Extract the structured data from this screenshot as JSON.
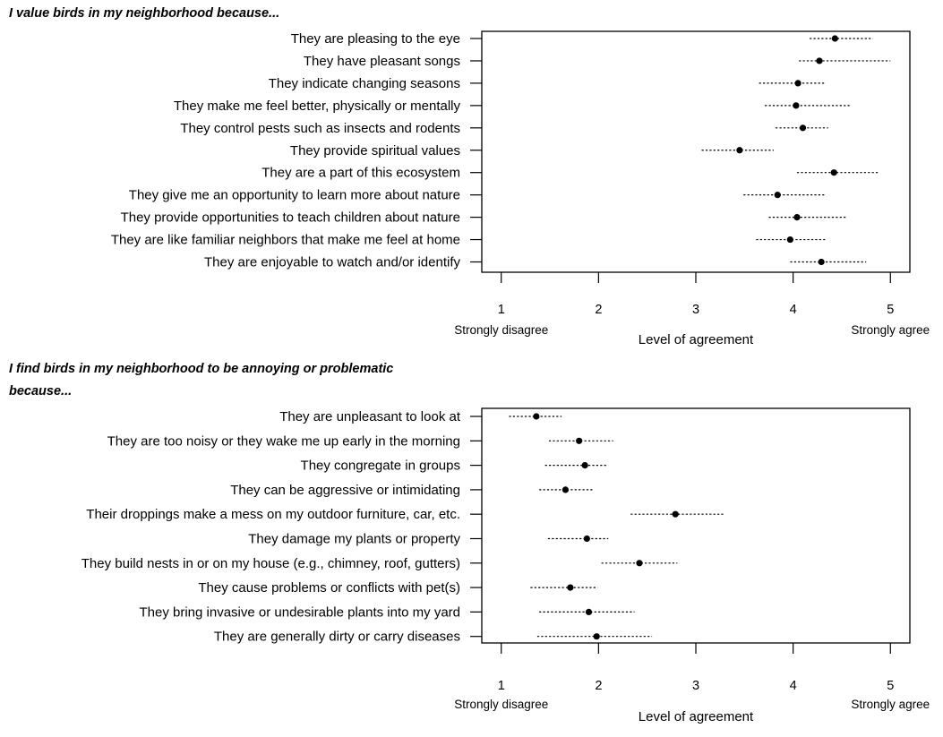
{
  "chart_data": [
    {
      "type": "scatter",
      "title_lines": [
        "I value birds in my neighborhood because..."
      ],
      "xlabel": "Level of agreement",
      "xlim": [
        0.8,
        5.2
      ],
      "xticks": [
        1,
        2,
        3,
        4,
        5
      ],
      "xtick_end_labels": {
        "low": "Strongly disagree",
        "high": "Strongly agree"
      },
      "grid": false,
      "categories": [
        "They are pleasing to the eye",
        "They have pleasant songs",
        "They indicate changing seasons",
        "They make me feel better, physically or mentally",
        "They control pests such as insects and rodents",
        "They provide spiritual values",
        "They are a part of this ecosystem",
        "They give me an opportunity to learn more about nature",
        "They provide opportunities to teach children about nature",
        "They are like familiar neighbors that make me feel at home",
        "They are enjoyable to watch and/or identify"
      ],
      "values": [
        4.43,
        4.27,
        4.05,
        4.03,
        4.1,
        3.45,
        4.42,
        3.84,
        4.04,
        3.97,
        4.29
      ],
      "lower": [
        4.17,
        4.06,
        3.65,
        3.71,
        3.82,
        3.06,
        4.04,
        3.49,
        3.75,
        3.62,
        3.97
      ],
      "upper": [
        4.82,
        5.0,
        4.33,
        4.58,
        4.36,
        3.8,
        4.89,
        4.32,
        4.54,
        4.34,
        4.75
      ]
    },
    {
      "type": "scatter",
      "title_lines": [
        "I find birds in my neighborhood to be annoying or problematic",
        "because..."
      ],
      "xlabel": "Level of agreement",
      "xlim": [
        0.8,
        5.2
      ],
      "xticks": [
        1,
        2,
        3,
        4,
        5
      ],
      "xtick_end_labels": {
        "low": "Strongly disagree",
        "high": "Strongly agree"
      },
      "grid": false,
      "categories": [
        "They are unpleasant to look at",
        "They are too noisy or they wake me up early in the morning",
        "They congregate in groups",
        "They can be aggressive or intimidating",
        "Their droppings make a mess on my outdoor furniture, car, etc.",
        "They damage my plants or property",
        "They build nests in or on my house (e.g., chimney, roof, gutters)",
        "They cause problems or conflicts with pet(s)",
        "They bring invasive or undesirable plants into my yard",
        "They are generally dirty or carry diseases"
      ],
      "values": [
        1.36,
        1.8,
        1.86,
        1.66,
        2.79,
        1.88,
        2.42,
        1.71,
        1.9,
        1.98
      ],
      "lower": [
        1.08,
        1.49,
        1.45,
        1.39,
        2.33,
        1.48,
        2.03,
        1.3,
        1.39,
        1.37
      ],
      "upper": [
        1.62,
        2.15,
        2.08,
        1.94,
        3.3,
        2.1,
        2.81,
        1.99,
        2.37,
        2.55
      ]
    }
  ]
}
